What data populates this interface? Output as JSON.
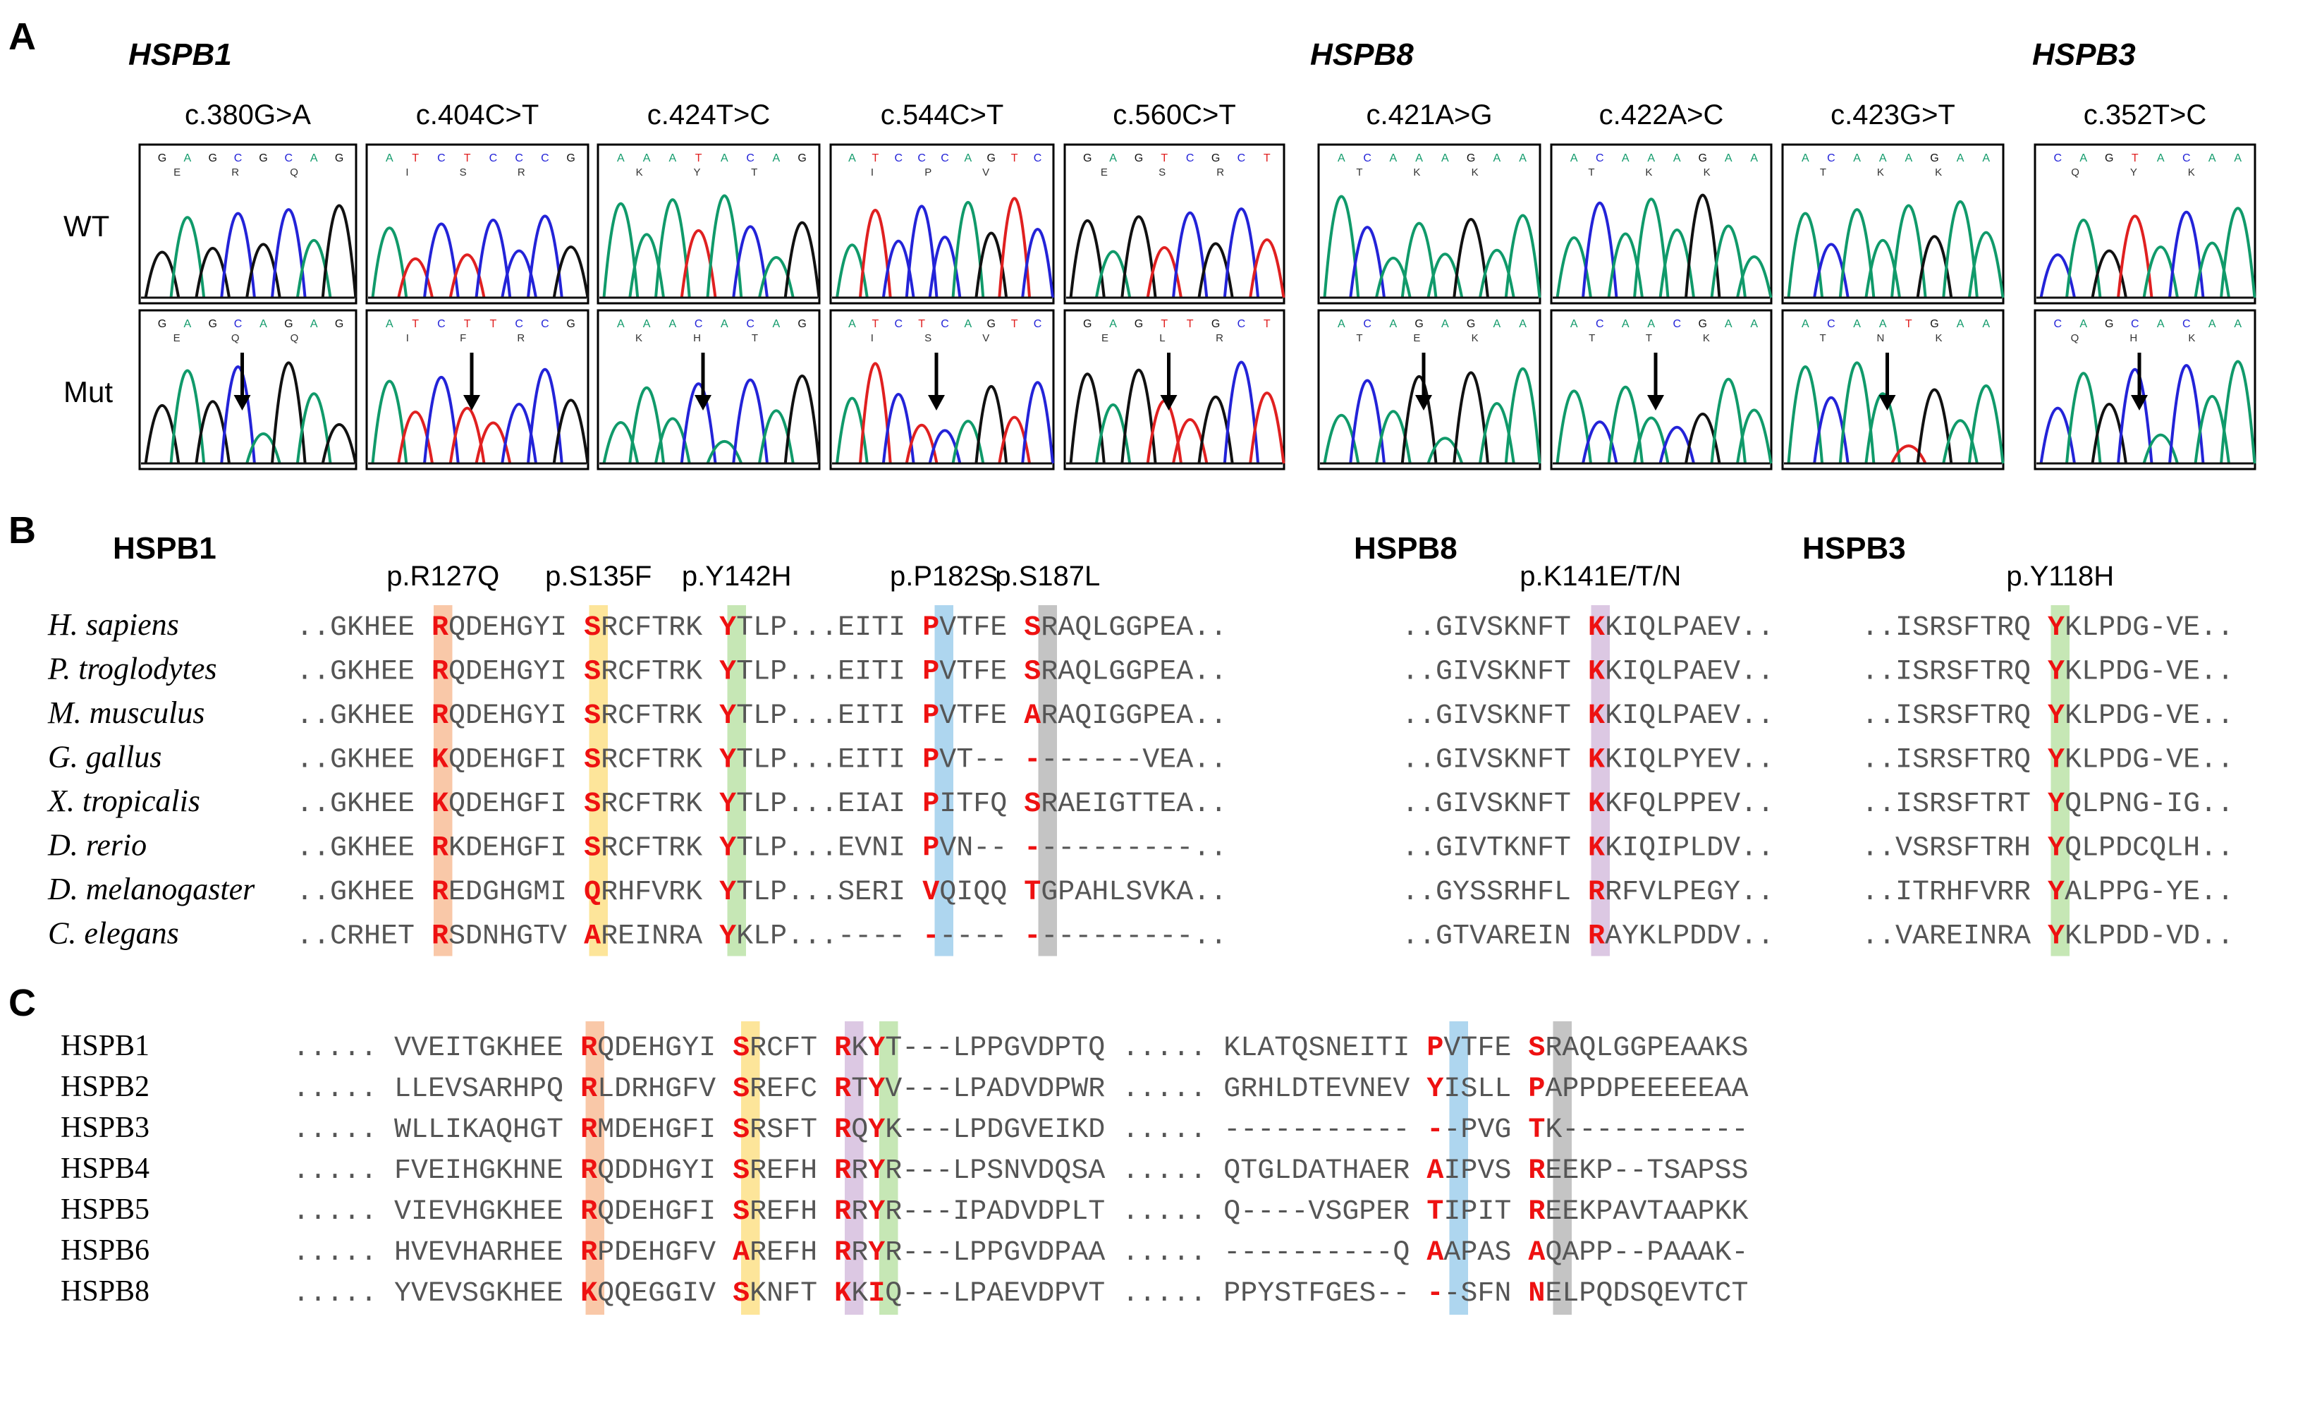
{
  "panel_a": {
    "label": "A",
    "genes": [
      "HSPB1",
      "HSPB8",
      "HSPB3"
    ],
    "row_labels": [
      "WT",
      "Mut"
    ],
    "mutations": [
      "c.380G>A",
      "c.404C>T",
      "c.424T>C",
      "c.544C>T",
      "c.560C>T",
      "c.421A>G",
      "c.422A>C",
      "c.423G>T",
      "c.352T>C"
    ],
    "trace_colors": {
      "A": "#109a6a",
      "C": "#2323d8",
      "G": "#111111",
      "T": "#e02020"
    },
    "wt_bases": [
      "GAGCGCAG",
      "ATCTCCCG",
      "AAATACAG",
      "ATCCCAGTC",
      "GAGTCGCT",
      "ACAAAGAA",
      "ACAAAGAA",
      "ACAAAGAA",
      "CAGTACAA"
    ],
    "mut_bases": [
      "GAGCAGAG",
      "ATCTTCCG",
      "AAACACAG",
      "ATCTCAGTC",
      "GAGTTGCT",
      "ACAGAGAA",
      "ACAACGAA",
      "ACAATGAA",
      "CAGCACAA"
    ],
    "wt_aa": [
      "E R Q",
      "I S R",
      "K Y T",
      "I P V",
      "E S R",
      "T K K",
      "T K K",
      "T K K",
      "Q Y K"
    ],
    "mut_aa": [
      "E Q Q",
      "I F R",
      "K H T",
      "I S V",
      "E L R",
      "T E K",
      "T T K",
      "T N K",
      "Q H K"
    ]
  },
  "panel_b": {
    "label": "B",
    "genes": [
      "HSPB1",
      "HSPB8",
      "HSPB3"
    ],
    "variants": [
      "p.R127Q",
      "p.S135F",
      "p.Y142H",
      "p.P182S",
      "p.S187L",
      "p.K141E/T/N",
      "p.Y118H"
    ],
    "highlight_colors": [
      "#f9c8a8",
      "#fde59a",
      "#c6e7b5",
      "#aed6ef",
      "#c4c4c4",
      "#dcc8e3",
      "#c6e7b5"
    ],
    "species": [
      "H. sapiens",
      "P. troglodytes",
      "M. musculus",
      "G. gallus",
      "X. tropicalis",
      "D. rerio",
      "D. melanogaster",
      "C. elegans"
    ],
    "rows": [
      [
        [
          "..GKHEE ",
          "R",
          "QDEHGYI ",
          "S",
          "RCFTRK ",
          "Y",
          "TLP...EITI ",
          "P",
          "VTFE ",
          "S",
          "RAQLGGPEA.."
        ],
        [
          "..GIVSKNFT ",
          "K",
          "KIQLPAEV.."
        ],
        [
          "..ISRSFTRQ ",
          "Y",
          "KLPDG-VE.."
        ]
      ],
      [
        [
          "..GKHEE ",
          "R",
          "QDEHGYI ",
          "S",
          "RCFTRK ",
          "Y",
          "TLP...EITI ",
          "P",
          "VTFE ",
          "S",
          "RAQLGGPEA.."
        ],
        [
          "..GIVSKNFT ",
          "K",
          "KIQLPAEV.."
        ],
        [
          "..ISRSFTRQ ",
          "Y",
          "KLPDG-VE.."
        ]
      ],
      [
        [
          "..GKHEE ",
          "R",
          "QDEHGYI ",
          "S",
          "RCFTRK ",
          "Y",
          "TLP...EITI ",
          "P",
          "VTFE ",
          "A",
          "RAQIGGPEA.."
        ],
        [
          "..GIVSKNFT ",
          "K",
          "KIQLPAEV.."
        ],
        [
          "..ISRSFTRQ ",
          "Y",
          "KLPDG-VE.."
        ]
      ],
      [
        [
          "..GKHEE ",
          "K",
          "QDEHGFI ",
          "S",
          "RCFTRK ",
          "Y",
          "TLP...EITI ",
          "P",
          "VT-- ",
          "-",
          "------VEA.."
        ],
        [
          "..GIVSKNFT ",
          "K",
          "KIQLPYEV.."
        ],
        [
          "..ISRSFTRQ ",
          "Y",
          "KLPDG-VE.."
        ]
      ],
      [
        [
          "..GKHEE ",
          "K",
          "QDEHGFI ",
          "S",
          "RCFTRK ",
          "Y",
          "TLP...EIAI ",
          "P",
          "ITFQ ",
          "S",
          "RAEIGTTEA.."
        ],
        [
          "..GIVSKNFT ",
          "K",
          "KFQLPPEV.."
        ],
        [
          "..ISRSFTRT ",
          "Y",
          "QLPNG-IG.."
        ]
      ],
      [
        [
          "..GKHEE ",
          "R",
          "KDEHGFI ",
          "S",
          "RCFTRK ",
          "Y",
          "TLP...EVNI ",
          "P",
          "VN-- ",
          "-",
          "---------.."
        ],
        [
          "..GIVTKNFT ",
          "K",
          "KIQIPLDV.."
        ],
        [
          "..VSRSFTRH ",
          "Y",
          "QLPDCQLH.."
        ]
      ],
      [
        [
          "..GKHEE ",
          "R",
          "EDGHGMI ",
          "Q",
          "RHFVRK ",
          "Y",
          "TLP...SERI ",
          "V",
          "QIQQ ",
          "T",
          "GPAHLSVKA.."
        ],
        [
          "..GYSSRHFL ",
          "R",
          "RFVLPEGY.."
        ],
        [
          "..ITRHFVRR ",
          "Y",
          "ALPPG-YE.."
        ]
      ],
      [
        [
          "..CRHET ",
          "R",
          "SDNHGTV ",
          "A",
          "REINRA ",
          "Y",
          "KLP...---- ",
          "-",
          "---- ",
          "-",
          "---------.."
        ],
        [
          "..GTVAREIN ",
          "R",
          "AYKLPDDV.."
        ],
        [
          "..VAREINRA ",
          "Y",
          "KLPDD-VD.."
        ]
      ]
    ]
  },
  "panel_c": {
    "label": "C",
    "highlight_colors": [
      "#f9c8a8",
      "#fde59a",
      "#dcc8e3",
      "#c6e7b5",
      "#aed6ef",
      "#c4c4c4"
    ],
    "rows": [
      {
        "name": "HSPB1",
        "seq": [
          "..... VVEITGKHEE ",
          "R",
          "QDEHGYI ",
          "S",
          "RCFT ",
          "R",
          "K",
          "Y",
          "T---LPPGVDPTQ ..... KLATQSNEITI ",
          "P",
          "VTFE ",
          "S",
          "RAQLGGPEAAKS"
        ]
      },
      {
        "name": "HSPB2",
        "seq": [
          "..... LLEVSARHPQ ",
          "R",
          "LDRHGFV ",
          "S",
          "REFC ",
          "R",
          "T",
          "Y",
          "V---LPADVDPWR ..... GRHLDTEVNEV ",
          "Y",
          "ISLL ",
          "P",
          "APPDPEEEEEAA"
        ]
      },
      {
        "name": "HSPB3",
        "seq": [
          "..... WLLIKAQHGT ",
          "R",
          "MDEHGFI ",
          "S",
          "RSFT ",
          "R",
          "Q",
          "Y",
          "K---LPDGVEIKD ..... ----------- ",
          "-",
          "-PVG ",
          "T",
          "K-----------"
        ]
      },
      {
        "name": "HSPB4",
        "seq": [
          "..... FVEIHGKHNE ",
          "R",
          "QDDHGYI ",
          "S",
          "REFH ",
          "R",
          "R",
          "Y",
          "R---LPSNVDQSA ..... QTGLDATHAER ",
          "A",
          "IPVS ",
          "R",
          "EEKP--TSAPSS"
        ]
      },
      {
        "name": "HSPB5",
        "seq": [
          "..... VIEVHGKHEE ",
          "R",
          "QDEHGFI ",
          "S",
          "REFH ",
          "R",
          "R",
          "Y",
          "R---IPADVDPLT ..... Q----VSGPER ",
          "T",
          "IPIT ",
          "R",
          "EEKPAVTAAPKK"
        ]
      },
      {
        "name": "HSPB6",
        "seq": [
          "..... HVEVHARHEE ",
          "R",
          "PDEHGFV ",
          "A",
          "REFH ",
          "R",
          "R",
          "Y",
          "R---LPPGVDPAA ..... ----------Q ",
          "A",
          "APAS ",
          "A",
          "QAPP--PAAAK-"
        ]
      },
      {
        "name": "HSPB8",
        "seq": [
          "..... YVEVSGKHEE ",
          "K",
          "QQEGGIV ",
          "S",
          "KNFT ",
          "K",
          "K",
          "I",
          "Q---LPAEVDPVT ..... PPYSTFGES-- ",
          "-",
          "-SFN ",
          "N",
          "ELPQDSQEVTCT"
        ]
      }
    ]
  }
}
